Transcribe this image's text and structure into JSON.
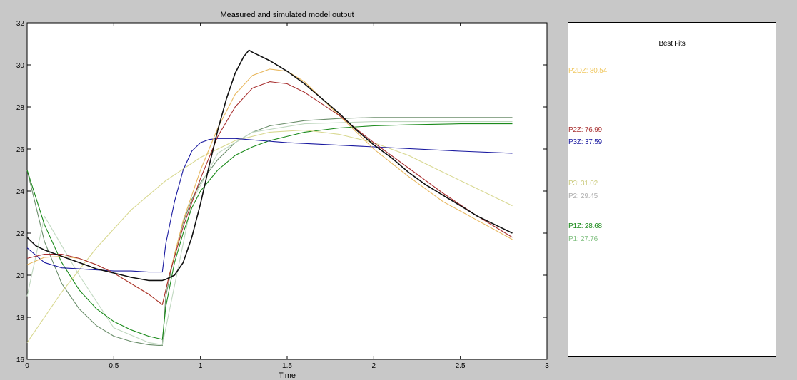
{
  "chart_data": {
    "type": "line",
    "title": "Measured and simulated model output",
    "xlabel": "Time",
    "ylabel": "",
    "xlim": [
      0,
      3
    ],
    "ylim": [
      16,
      32
    ],
    "xticks": [
      "0",
      "0.5",
      "1",
      "1.5",
      "2",
      "2.5",
      "3"
    ],
    "yticks": [
      "16",
      "18",
      "20",
      "22",
      "24",
      "26",
      "28",
      "30",
      "32"
    ],
    "grid": false,
    "series": [
      {
        "color": "#6b8e6b",
        "x": [
          0,
          0.05,
          0.1,
          0.2,
          0.3,
          0.4,
          0.5,
          0.6,
          0.7,
          0.78,
          0.8,
          0.85,
          0.9,
          0.95,
          1.0,
          1.1,
          1.2,
          1.3,
          1.4,
          1.6,
          1.8,
          2.0,
          2.2,
          2.4,
          2.6,
          2.8
        ],
        "y": [
          25.0,
          23.3,
          21.6,
          19.6,
          18.4,
          17.6,
          17.1,
          16.85,
          16.7,
          16.65,
          19.0,
          21.0,
          22.5,
          23.6,
          24.4,
          25.5,
          26.3,
          26.8,
          27.1,
          27.35,
          27.45,
          27.5,
          27.5,
          27.5,
          27.5,
          27.5
        ]
      },
      {
        "color": "#c0d8c0",
        "x": [
          0,
          0.1,
          0.3,
          0.5,
          0.7,
          0.78,
          0.85,
          0.95,
          1.1,
          1.3,
          1.6,
          2.0,
          2.4,
          2.8
        ],
        "y": [
          19.0,
          22.8,
          20.0,
          17.5,
          16.8,
          16.7,
          19.5,
          23.5,
          25.8,
          26.8,
          27.2,
          27.3,
          27.3,
          27.3
        ]
      },
      {
        "color": "#1a8a1a",
        "x": [
          0,
          0.1,
          0.2,
          0.3,
          0.4,
          0.5,
          0.6,
          0.7,
          0.78,
          0.8,
          0.85,
          0.9,
          0.95,
          1.0,
          1.1,
          1.2,
          1.3,
          1.4,
          1.6,
          1.8,
          2.0,
          2.2,
          2.5,
          2.8
        ],
        "y": [
          25.0,
          22.4,
          20.6,
          19.3,
          18.4,
          17.8,
          17.4,
          17.1,
          16.95,
          18.5,
          20.6,
          22.0,
          23.2,
          24.0,
          25.0,
          25.7,
          26.1,
          26.4,
          26.8,
          27.0,
          27.1,
          27.15,
          27.2,
          27.2
        ]
      },
      {
        "color": "#d8d890",
        "x": [
          0,
          0.2,
          0.4,
          0.6,
          0.8,
          1.0,
          1.2,
          1.4,
          1.6,
          1.8,
          2.0,
          2.2,
          2.4,
          2.6,
          2.8
        ],
        "y": [
          16.8,
          19.2,
          21.3,
          23.1,
          24.5,
          25.6,
          26.4,
          26.8,
          26.9,
          26.7,
          26.3,
          25.7,
          24.9,
          24.1,
          23.3
        ]
      },
      {
        "color": "#1a1aa0",
        "x": [
          0,
          0.1,
          0.2,
          0.3,
          0.4,
          0.5,
          0.6,
          0.7,
          0.78,
          0.8,
          0.85,
          0.9,
          0.95,
          1.0,
          1.05,
          1.1,
          1.2,
          1.5,
          2.0,
          2.5,
          2.8
        ],
        "y": [
          21.3,
          20.6,
          20.35,
          20.3,
          20.25,
          20.2,
          20.2,
          20.15,
          20.15,
          21.5,
          23.5,
          25.0,
          25.9,
          26.3,
          26.45,
          26.5,
          26.5,
          26.3,
          26.1,
          25.9,
          25.8
        ]
      },
      {
        "color": "#e8b860",
        "x": [
          0,
          0.1,
          0.2,
          0.3,
          0.4,
          0.5,
          0.6,
          0.7,
          0.78,
          0.82,
          0.9,
          1.0,
          1.1,
          1.2,
          1.3,
          1.4,
          1.5,
          1.6,
          1.8,
          2.0,
          2.2,
          2.4,
          2.6,
          2.8
        ],
        "y": [
          20.5,
          20.85,
          20.9,
          20.8,
          20.5,
          20.1,
          19.6,
          19.1,
          18.6,
          20.0,
          22.6,
          25.0,
          27.0,
          28.6,
          29.5,
          29.8,
          29.7,
          29.2,
          27.6,
          26.0,
          24.7,
          23.5,
          22.6,
          21.7
        ]
      },
      {
        "color": "#a83030",
        "x": [
          0,
          0.1,
          0.2,
          0.3,
          0.4,
          0.5,
          0.6,
          0.7,
          0.78,
          0.82,
          0.9,
          1.0,
          1.1,
          1.2,
          1.3,
          1.4,
          1.5,
          1.6,
          1.8,
          2.0,
          2.2,
          2.4,
          2.6,
          2.8
        ],
        "y": [
          20.8,
          21.0,
          21.0,
          20.8,
          20.5,
          20.1,
          19.6,
          19.1,
          18.6,
          20.0,
          22.3,
          24.6,
          26.6,
          28.0,
          28.9,
          29.2,
          29.1,
          28.7,
          27.6,
          26.3,
          25.1,
          23.9,
          22.8,
          21.8
        ]
      },
      {
        "color": "#101010",
        "x": [
          0,
          0.05,
          0.1,
          0.2,
          0.3,
          0.4,
          0.5,
          0.6,
          0.7,
          0.78,
          0.8,
          0.85,
          0.9,
          0.95,
          1.0,
          1.05,
          1.1,
          1.15,
          1.2,
          1.25,
          1.28,
          1.3,
          1.35,
          1.4,
          1.5,
          1.6,
          1.7,
          1.8,
          1.9,
          2.0,
          2.1,
          2.2,
          2.3,
          2.4,
          2.5,
          2.6,
          2.7,
          2.8
        ],
        "y": [
          21.8,
          21.4,
          21.2,
          20.9,
          20.6,
          20.3,
          20.1,
          19.9,
          19.75,
          19.75,
          19.8,
          20.0,
          20.6,
          21.8,
          23.4,
          25.2,
          26.9,
          28.4,
          29.6,
          30.4,
          30.7,
          30.6,
          30.4,
          30.2,
          29.7,
          29.1,
          28.4,
          27.7,
          26.9,
          26.2,
          25.6,
          24.9,
          24.3,
          23.8,
          23.3,
          22.8,
          22.4,
          22.0
        ]
      }
    ]
  },
  "legend": {
    "title": "Best Fits",
    "entries": [
      {
        "label": "P2DZ: 80.54",
        "color": "#f0c860"
      },
      {
        "label": "P2Z: 76.99",
        "color": "#a83030"
      },
      {
        "label": "P3Z: 37.59",
        "color": "#1a1aa0"
      },
      {
        "label": "P3: 31.02",
        "color": "#cccc80"
      },
      {
        "label": "P2: 29.45",
        "color": "#b0b0b0"
      },
      {
        "label": "P1Z: 28.68",
        "color": "#1a8a1a"
      },
      {
        "label": "P1: 27.76",
        "color": "#80c080"
      }
    ]
  }
}
